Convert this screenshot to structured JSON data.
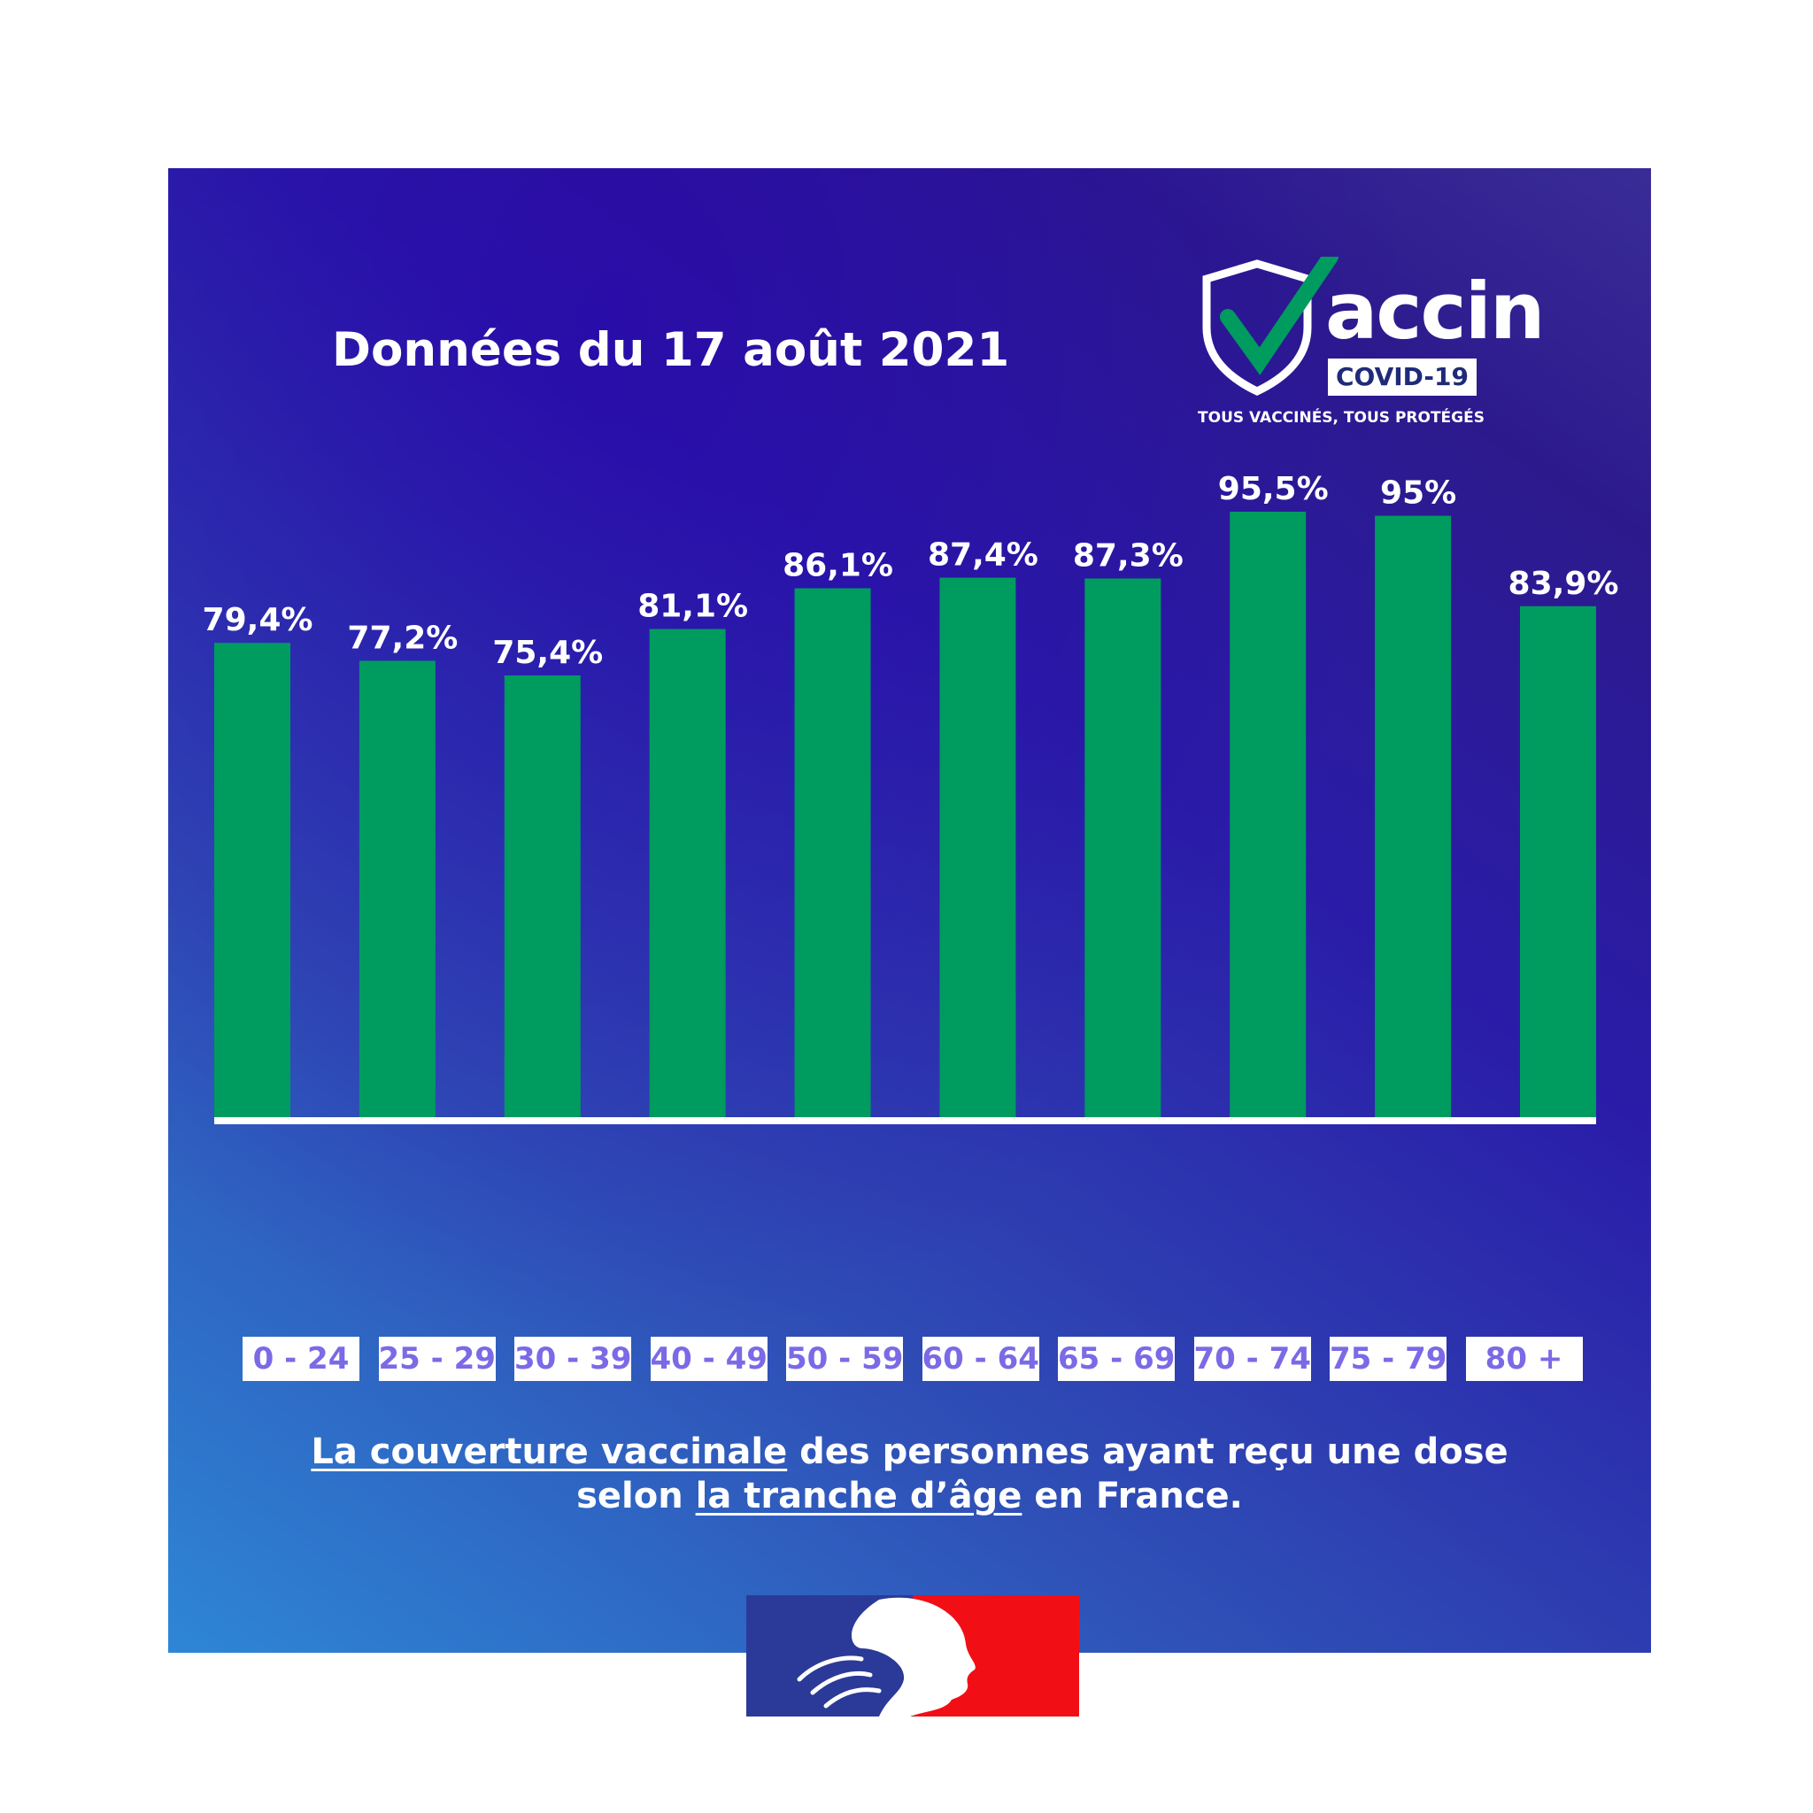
{
  "title": "Données du 17 août 2021",
  "logo": {
    "word": "accin",
    "badge": "COVID-19",
    "tagline": "TOUS VACCINÉS, TOUS PROTÉGÉS",
    "lettering_full": "Vaccin COVID-19"
  },
  "caption": {
    "part1_underlined": "La couverture vaccinale",
    "part2": " des personnes ayant reçu une dose",
    "part3": "selon ",
    "part4_underlined": "la tranche d’âge",
    "part5": " en France."
  },
  "colors": {
    "bar": "#009b5f",
    "background_dark": "#2a1ca8",
    "background_light": "#2e86d6",
    "category_text": "#7a6ae6",
    "flag_blue": "#2b3a98",
    "flag_red": "#f20e15"
  },
  "chart_data": {
    "type": "bar",
    "categories": [
      "0 - 24",
      "25 - 29",
      "30 - 39",
      "40 - 49",
      "50 - 59",
      "60 - 64",
      "65 - 69",
      "70 - 74",
      "75 - 79",
      "80 +"
    ],
    "values": [
      79.4,
      77.2,
      75.4,
      81.1,
      86.1,
      87.4,
      87.3,
      95.5,
      95,
      83.9
    ],
    "data_labels": [
      "79,4%",
      "77,2%",
      "75,4%",
      "81,1%",
      "86,1%",
      "87,4%",
      "87,3%",
      "95,5%",
      "95%",
      "83,9%"
    ],
    "title": "Données du 17 août 2021",
    "unit": "%",
    "ylim": [
      0,
      100
    ],
    "grid": false,
    "legend": "none",
    "baseline_line": true
  }
}
